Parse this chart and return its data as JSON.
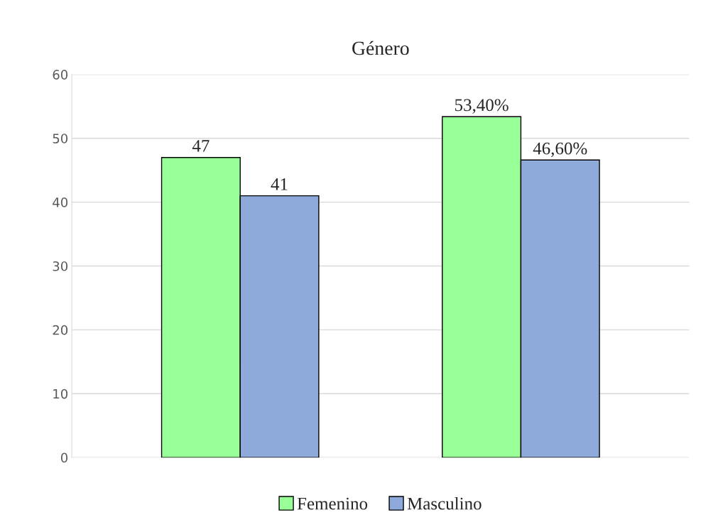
{
  "chart_data": {
    "type": "bar",
    "title": "Género",
    "categories": [
      null,
      null
    ],
    "series": [
      {
        "name": "Femenino",
        "color": "#99ff99",
        "values": [
          47,
          53.4
        ],
        "value_labels": [
          "47",
          "53,40%"
        ]
      },
      {
        "name": "Masculino",
        "color": "#8eaadb",
        "values": [
          41,
          46.6
        ],
        "value_labels": [
          "41",
          "46,60%"
        ]
      }
    ],
    "ylim": [
      0,
      60
    ],
    "yticks": [
      0,
      10,
      20,
      30,
      40,
      50,
      60
    ],
    "grid": "y",
    "legend": "bottom"
  }
}
